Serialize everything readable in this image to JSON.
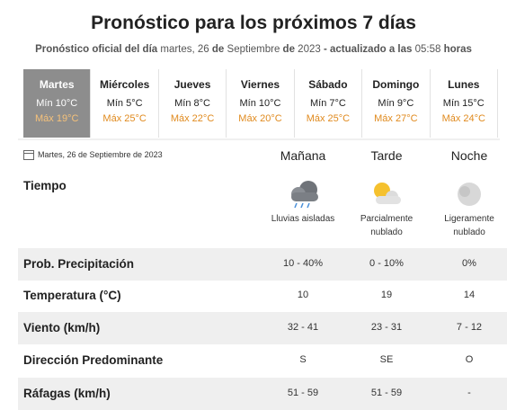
{
  "header": {
    "title": "Pronóstico para los próximos 7 días",
    "subtitle": [
      {
        "text": "Pronóstico oficial del día",
        "bold": true
      },
      {
        "text": "martes, 26",
        "bold": false
      },
      {
        "text": "de",
        "bold": true
      },
      {
        "text": "Septiembre",
        "bold": false
      },
      {
        "text": "de",
        "bold": true
      },
      {
        "text": "2023",
        "bold": false
      },
      {
        "text": "- actualizado a las",
        "bold": true
      },
      {
        "text": "05:58",
        "bold": false
      },
      {
        "text": "horas",
        "bold": true
      }
    ]
  },
  "days": [
    {
      "name": "Martes",
      "min": "Mín 10°C",
      "max": "Máx 19°C",
      "selected": true
    },
    {
      "name": "Miércoles",
      "min": "Mín 5°C",
      "max": "Máx 25°C",
      "selected": false
    },
    {
      "name": "Jueves",
      "min": "Mín 8°C",
      "max": "Máx 22°C",
      "selected": false
    },
    {
      "name": "Viernes",
      "min": "Mín 10°C",
      "max": "Máx 20°C",
      "selected": false
    },
    {
      "name": "Sábado",
      "min": "Mín 7°C",
      "max": "Máx 25°C",
      "selected": false
    },
    {
      "name": "Domingo",
      "min": "Mín 9°C",
      "max": "Máx 27°C",
      "selected": false
    },
    {
      "name": "Lunes",
      "min": "Mín 15°C",
      "max": "Máx 24°C",
      "selected": false
    }
  ],
  "date": "Martes, 26 de Septiembre de 2023",
  "periods": [
    "Mañana",
    "Tarde",
    "Noche"
  ],
  "weather": {
    "label": "Tiempo",
    "values": [
      "Lluvias aisladas",
      "Parcialmente nublado",
      "Ligeramente nublado"
    ]
  },
  "rows": [
    {
      "label": "Prob. Precipitación",
      "values": [
        "10 - 40%",
        "0 - 10%",
        "0%"
      ]
    },
    {
      "label": "Temperatura (°C)",
      "values": [
        "10",
        "19",
        "14"
      ]
    },
    {
      "label": "Viento (km/h)",
      "values": [
        "32 - 41",
        "23 - 31",
        "7 - 12"
      ]
    },
    {
      "label": "Dirección Predominante",
      "values": [
        "S",
        "SE",
        "O"
      ]
    },
    {
      "label": "Ráfagas (km/h)",
      "values": [
        "51 - 59",
        "51 - 59",
        "-"
      ]
    }
  ]
}
